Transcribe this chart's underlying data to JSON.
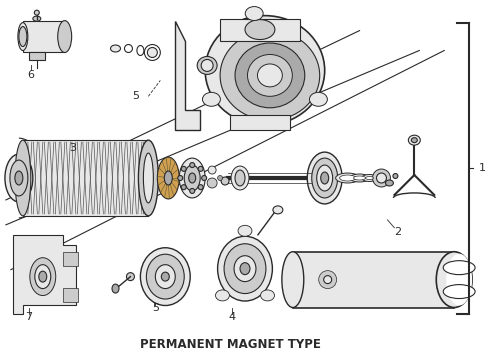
{
  "subtitle": "PERMANENT MAGNET TYPE",
  "background_color": "#ffffff",
  "line_color": "#2a2a2a",
  "fill_light": "#e8e8e8",
  "fill_mid": "#cccccc",
  "fill_dark": "#aaaaaa",
  "bracket_label": "1",
  "subtitle_fontsize": 8.5,
  "label_fontsize": 7.5,
  "figsize": [
    4.9,
    3.6
  ],
  "dpi": 100
}
